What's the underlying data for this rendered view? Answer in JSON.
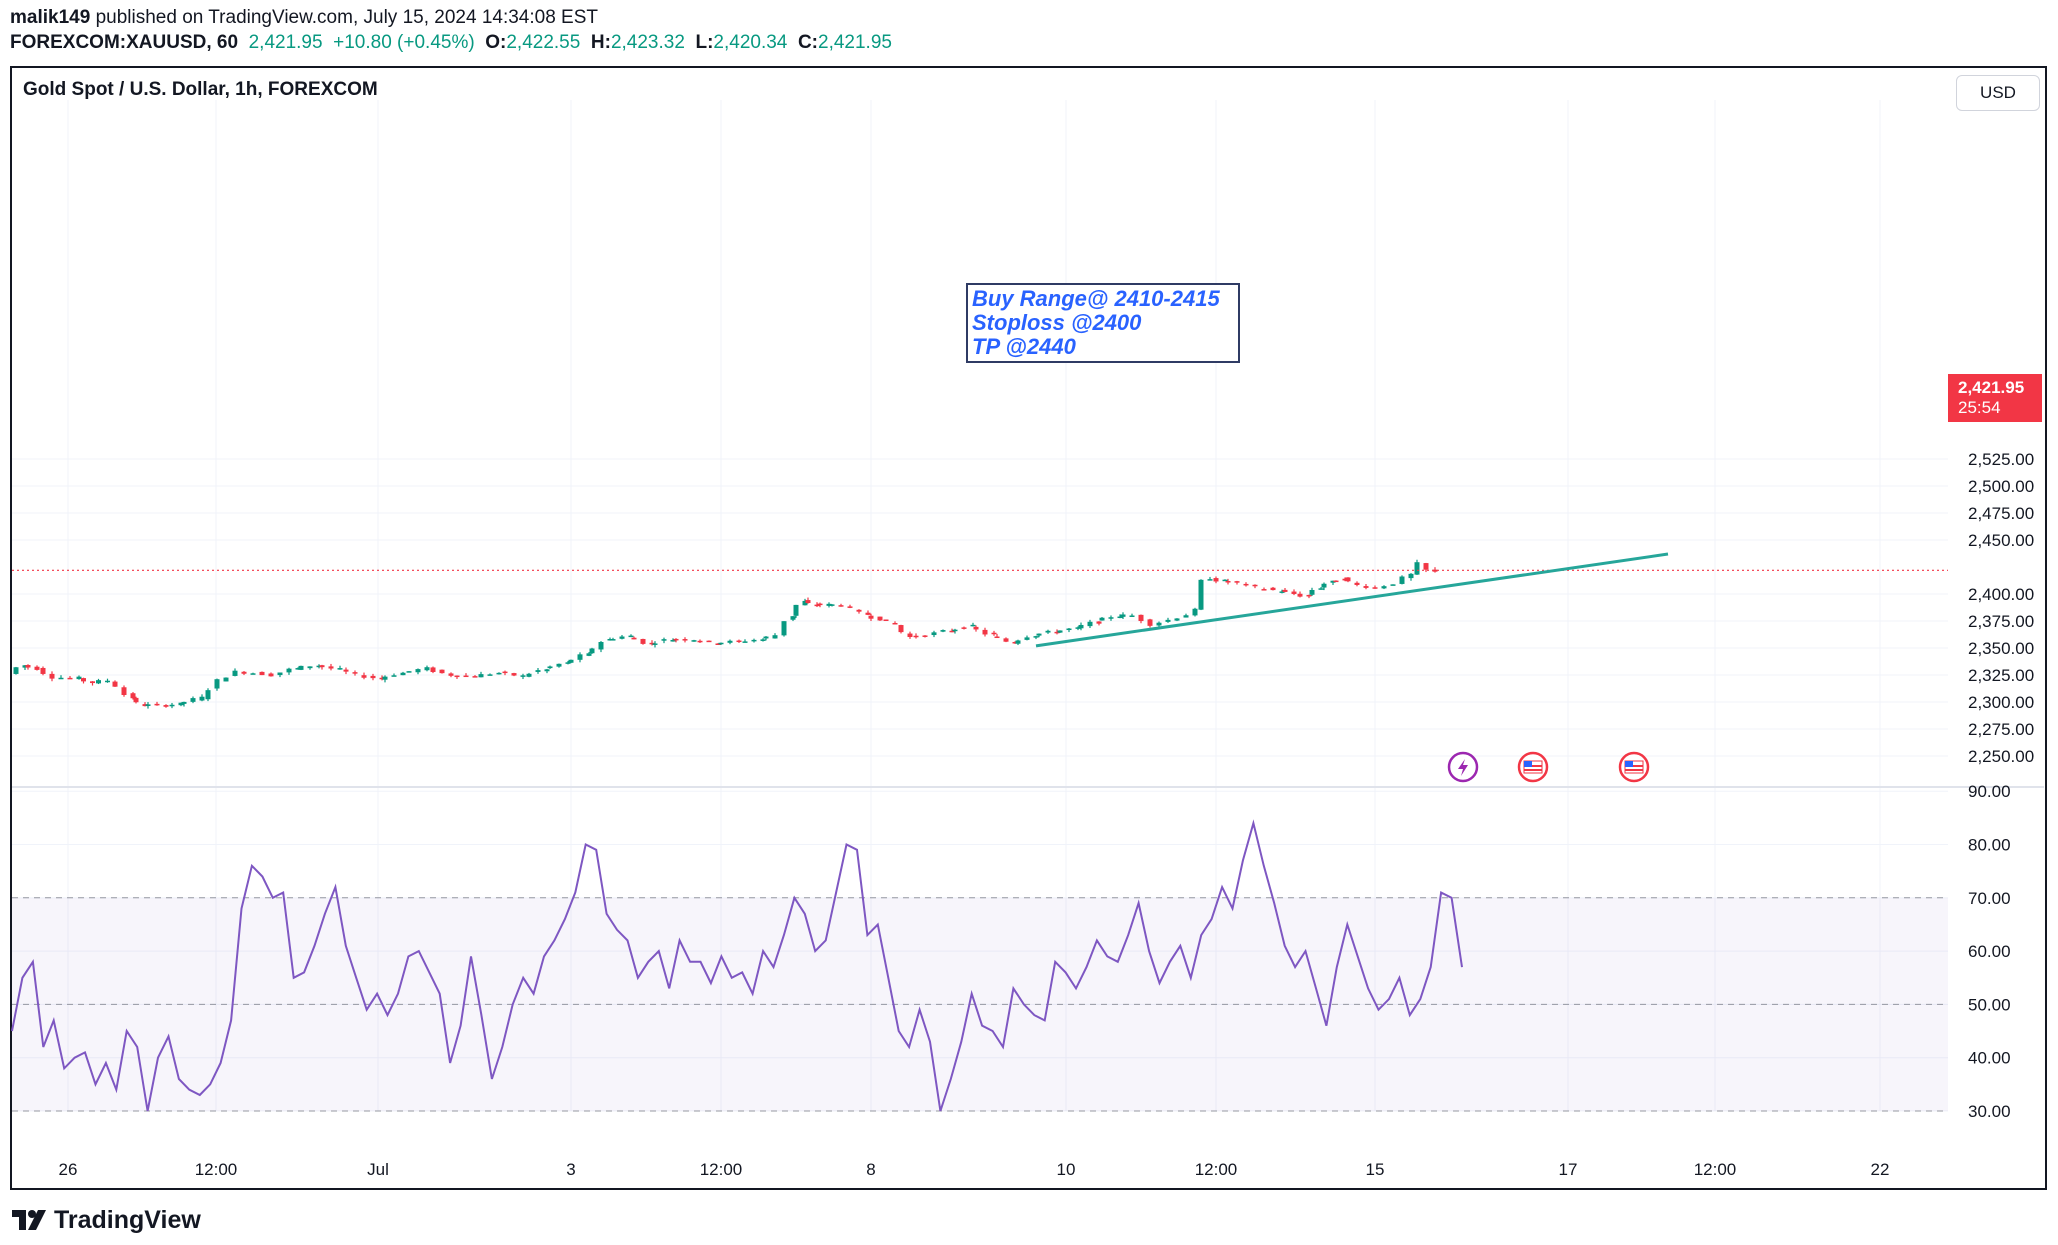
{
  "header": {
    "author": "malik149",
    "published": "published on TradingView.com, July 15, 2024 14:34:08 EST",
    "symbol": "FOREXCOM:XAUUSD, 60",
    "last": "2,421.95",
    "change": "+10.80 (+0.45%)",
    "o_label": "O:",
    "o": "2,422.55",
    "h_label": "H:",
    "h": "2,423.32",
    "l_label": "L:",
    "l": "2,420.34",
    "c_label": "C:",
    "c": "2,421.95"
  },
  "chart": {
    "title": "Gold Spot / U.S. Dollar, 1h, FOREXCOM",
    "currency": "USD",
    "price_tag": {
      "price": "2,421.95",
      "countdown": "25:54"
    },
    "annotation": [
      "Buy Range@ 2410-2415",
      "Stoploss @2400",
      "TP @2440"
    ],
    "colors": {
      "up": "#089981",
      "down": "#f23645",
      "trendline": "#26a69a",
      "rsi": "#7e57c2",
      "annotation_text": "#2962ff"
    },
    "event_icons": [
      "lightning-icon",
      "us-flag-icon",
      "us-flag-icon"
    ]
  },
  "footer": {
    "brand": "TradingView"
  },
  "chart_data": [
    {
      "type": "candlestick",
      "title": "Gold Spot / U.S. Dollar, 1h, FOREXCOM",
      "price_axis": [
        "2,525.00",
        "2,500.00",
        "2,475.00",
        "2,450.00",
        "2,400.00",
        "2,375.00",
        "2,350.00",
        "2,325.00",
        "2,300.00",
        "2,275.00",
        "2,250.00"
      ],
      "ylim": [
        2237,
        2552
      ],
      "time_axis": [
        "26",
        "12:00",
        "Jul",
        "3",
        "12:00",
        "8",
        "10",
        "12:00",
        "15",
        "17",
        "12:00",
        "22"
      ],
      "price_path": [
        [
          0,
          2326
        ],
        [
          8,
          2334
        ],
        [
          18,
          2331
        ],
        [
          30,
          2323
        ],
        [
          45,
          2322
        ],
        [
          55,
          2318
        ],
        [
          66,
          2320
        ],
        [
          72,
          2315
        ],
        [
          80,
          2304
        ],
        [
          88,
          2297
        ],
        [
          104,
          2297
        ],
        [
          112,
          2298
        ],
        [
          128,
          2304
        ],
        [
          140,
          2320
        ],
        [
          152,
          2328
        ],
        [
          164,
          2327
        ],
        [
          176,
          2325
        ],
        [
          190,
          2331
        ],
        [
          204,
          2334
        ],
        [
          220,
          2330
        ],
        [
          232,
          2325
        ],
        [
          246,
          2322
        ],
        [
          262,
          2327
        ],
        [
          278,
          2331
        ],
        [
          294,
          2325
        ],
        [
          310,
          2324
        ],
        [
          326,
          2327
        ],
        [
          342,
          2324
        ],
        [
          356,
          2330
        ],
        [
          370,
          2336
        ],
        [
          384,
          2344
        ],
        [
          398,
          2358
        ],
        [
          412,
          2361
        ],
        [
          426,
          2354
        ],
        [
          440,
          2358
        ],
        [
          456,
          2358
        ],
        [
          470,
          2355
        ],
        [
          486,
          2356
        ],
        [
          500,
          2358
        ],
        [
          512,
          2362
        ],
        [
          520,
          2380
        ],
        [
          528,
          2393
        ],
        [
          536,
          2390
        ],
        [
          544,
          2390
        ],
        [
          556,
          2390
        ],
        [
          570,
          2381
        ],
        [
          580,
          2377
        ],
        [
          590,
          2372
        ],
        [
          600,
          2360
        ],
        [
          612,
          2362
        ],
        [
          626,
          2366
        ],
        [
          640,
          2370
        ],
        [
          654,
          2362
        ],
        [
          668,
          2355
        ],
        [
          682,
          2362
        ],
        [
          696,
          2365
        ],
        [
          710,
          2368
        ],
        [
          724,
          2374
        ],
        [
          738,
          2380
        ],
        [
          750,
          2380
        ],
        [
          762,
          2372
        ],
        [
          774,
          2376
        ],
        [
          786,
          2381
        ],
        [
          790,
          2385
        ],
        [
          796,
          2412
        ],
        [
          800,
          2415
        ],
        [
          808,
          2412
        ],
        [
          820,
          2410
        ],
        [
          832,
          2406
        ],
        [
          846,
          2403
        ],
        [
          856,
          2400
        ],
        [
          864,
          2398
        ],
        [
          872,
          2406
        ],
        [
          880,
          2411
        ],
        [
          888,
          2414
        ],
        [
          900,
          2408
        ],
        [
          912,
          2406
        ],
        [
          924,
          2410
        ],
        [
          934,
          2418
        ],
        [
          940,
          2428
        ],
        [
          946,
          2422
        ],
        [
          952,
          2420
        ]
      ],
      "trendline": {
        "from": [
          "Jul 9",
          2352
        ],
        "to": [
          "Jul 17",
          2437
        ]
      },
      "last_price": 2421.95
    },
    {
      "type": "line",
      "series": [
        {
          "name": "RSI",
          "values": [
            45,
            55,
            58,
            42,
            47,
            38,
            40,
            41,
            35,
            39,
            34,
            45,
            42,
            30,
            40,
            44,
            36,
            34,
            33,
            35,
            39,
            47,
            68,
            76,
            74,
            70,
            71,
            55,
            56,
            61,
            67,
            72,
            61,
            55,
            49,
            52,
            48,
            52,
            59,
            60,
            56,
            52,
            39,
            46,
            59,
            48,
            36,
            42,
            50,
            55,
            52,
            59,
            62,
            66,
            71,
            80,
            79,
            67,
            64,
            62,
            55,
            58,
            60,
            53,
            62,
            58,
            58,
            54,
            59,
            55,
            56,
            52,
            60,
            57,
            63,
            70,
            67,
            60,
            62,
            71,
            80,
            79,
            63,
            65,
            55,
            45,
            42,
            49,
            43,
            30,
            36,
            43,
            52,
            46,
            45,
            42,
            53,
            50,
            48,
            47,
            58,
            56,
            53,
            57,
            62,
            59,
            58,
            63,
            69,
            60,
            54,
            58,
            61,
            55,
            63,
            66,
            72,
            68,
            77,
            84,
            76,
            69,
            61,
            57,
            60,
            53,
            46,
            57,
            65,
            59,
            53,
            49,
            51,
            55,
            48,
            51,
            57,
            71,
            70,
            57
          ]
        }
      ],
      "ylim": [
        27,
        91
      ],
      "y_axis": [
        "90.00",
        "80.00",
        "70.00",
        "60.00",
        "50.00",
        "40.00",
        "30.00"
      ],
      "levels": [
        70,
        50,
        30
      ]
    }
  ]
}
